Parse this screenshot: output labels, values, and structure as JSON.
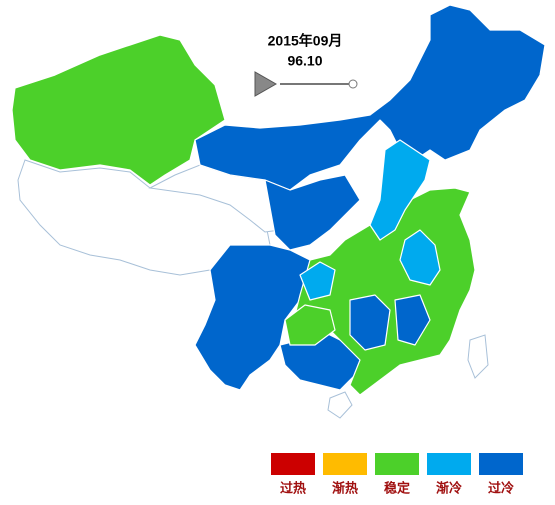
{
  "header": {
    "date": "2015年09月",
    "value": "96.10"
  },
  "legend": {
    "items": [
      {
        "label": "过热",
        "color": "#cc0000"
      },
      {
        "label": "渐热",
        "color": "#ffbb00"
      },
      {
        "label": "稳定",
        "color": "#4cd02a"
      },
      {
        "label": "渐冷",
        "color": "#00aaee"
      },
      {
        "label": "过冷",
        "color": "#0066cc"
      }
    ]
  }
}
